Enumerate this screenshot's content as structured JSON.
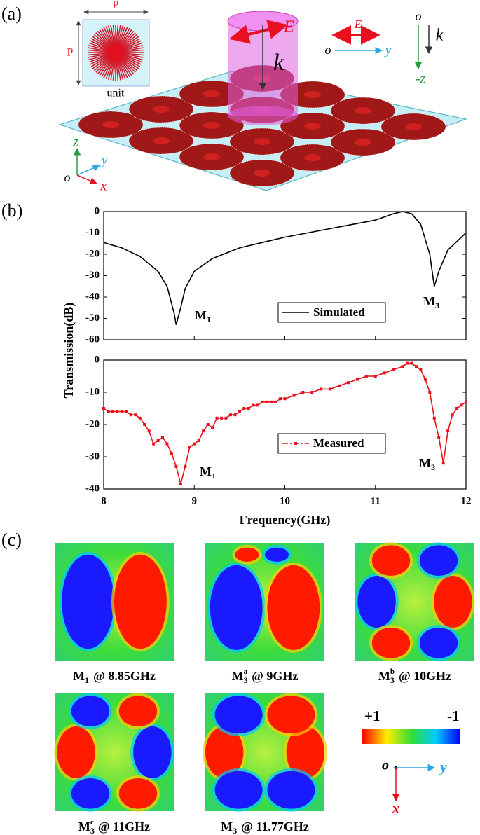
{
  "panel_labels": [
    "(a)",
    "(b)",
    "(c)"
  ],
  "diagram": {
    "unit_dim_top": "P",
    "unit_dim_side": "P",
    "unit_label": "unit",
    "cylinder_E": "E",
    "cylinder_k": "k",
    "legend_E": "E",
    "legend_o_y": "o",
    "legend_y": "y",
    "legend_o_z": "o",
    "legend_k": "k",
    "legend_minus_z": "-z",
    "axis_z": "z",
    "axis_y": "y",
    "axis_o": "o",
    "axis_x": "x"
  },
  "chart_data": [
    {
      "type": "line",
      "ylabel": "Transmission(dB)",
      "x": [
        8,
        8.2,
        8.4,
        8.6,
        8.7,
        8.78,
        8.8,
        8.85,
        8.9,
        9.0,
        9.2,
        9.5,
        10,
        10.5,
        11,
        11.2,
        11.3,
        11.4,
        11.5,
        11.6,
        11.65,
        11.7,
        11.8,
        12
      ],
      "series": [
        {
          "name": "Simulated",
          "color": "#000000",
          "values": [
            -14.5,
            -17,
            -21,
            -28,
            -35,
            -48,
            -53,
            -45,
            -36,
            -28,
            -22,
            -17,
            -12,
            -8,
            -4,
            -1,
            0,
            -1,
            -6,
            -20,
            -35,
            -28,
            -18,
            -10
          ]
        }
      ],
      "xlim": [
        8,
        12
      ],
      "ylim": [
        -60,
        0
      ],
      "yticks": [
        0,
        -10,
        -20,
        -30,
        -40,
        -50,
        -60
      ],
      "annotations": [
        {
          "text": "M",
          "sub": "1"
        },
        {
          "text": "M",
          "sub": "3"
        }
      ]
    },
    {
      "type": "line",
      "markers": true,
      "xlabel": "Frequency(GHz)",
      "x": [
        8,
        8.05,
        8.1,
        8.15,
        8.2,
        8.25,
        8.3,
        8.35,
        8.4,
        8.45,
        8.5,
        8.55,
        8.6,
        8.65,
        8.7,
        8.75,
        8.8,
        8.85,
        8.9,
        8.95,
        9.0,
        9.05,
        9.1,
        9.15,
        9.2,
        9.25,
        9.3,
        9.35,
        9.4,
        9.45,
        9.5,
        9.55,
        9.6,
        9.65,
        9.7,
        9.75,
        9.8,
        9.85,
        9.9,
        9.95,
        10,
        10.1,
        10.2,
        10.3,
        10.4,
        10.5,
        10.6,
        10.7,
        10.8,
        10.9,
        11,
        11.1,
        11.2,
        11.3,
        11.35,
        11.4,
        11.45,
        11.5,
        11.55,
        11.6,
        11.65,
        11.7,
        11.75,
        11.8,
        11.85,
        11.9,
        11.95,
        12
      ],
      "series": [
        {
          "name": "Measured",
          "color": "#e8101a",
          "values": [
            -15,
            -16,
            -16,
            -16,
            -16,
            -16,
            -17,
            -17,
            -18,
            -20,
            -22,
            -26,
            -25,
            -24,
            -26,
            -29,
            -33,
            -38.5,
            -33,
            -27,
            -26,
            -25,
            -22,
            -20,
            -21,
            -18,
            -18,
            -18,
            -17,
            -17,
            -16,
            -15,
            -15,
            -14,
            -14,
            -13,
            -13,
            -13,
            -13,
            -12,
            -12,
            -11,
            -10,
            -10,
            -9,
            -9,
            -8,
            -7,
            -6,
            -5,
            -5,
            -4,
            -3,
            -2,
            -1,
            -1,
            -2,
            -3,
            -6,
            -10,
            -18,
            -24,
            -32,
            -22,
            -17,
            -15,
            -14,
            -13
          ]
        }
      ],
      "xlim": [
        8,
        12
      ],
      "xticks": [
        8,
        9,
        10,
        11,
        12
      ],
      "ylim": [
        -40,
        0
      ],
      "yticks": [
        0,
        -10,
        -20,
        -30,
        -40
      ],
      "annotations": [
        {
          "text": "M",
          "sub": "1"
        },
        {
          "text": "M",
          "sub": "3"
        }
      ]
    }
  ],
  "field_maps": {
    "captions": [
      {
        "base": "M",
        "sub": "1",
        "sup": "",
        "freq": "@ 8.85GHz"
      },
      {
        "base": "M",
        "sub": "3",
        "sup": "a",
        "freq": "@ 9GHz"
      },
      {
        "base": "M",
        "sub": "3",
        "sup": "b",
        "freq": "@ 10GHz"
      },
      {
        "base": "M",
        "sub": "3",
        "sup": "c",
        "freq": "@ 11GHz"
      },
      {
        "base": "M",
        "sub": "3",
        "sup": "",
        "freq": "@ 11.77GHz"
      }
    ],
    "colorbar": {
      "max_label": "+1",
      "min_label": "-1"
    },
    "axes": {
      "o": "o",
      "y": "y",
      "x": "x"
    }
  }
}
